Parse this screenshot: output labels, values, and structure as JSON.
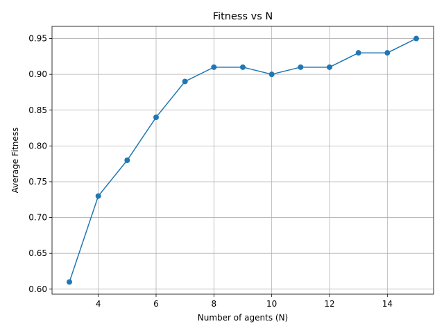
{
  "chart_data": {
    "type": "line",
    "title": "Fitness vs N",
    "xlabel": "Number of agents (N)",
    "ylabel": "Average Fitness",
    "xlim": [
      2.4,
      15.6
    ],
    "ylim": [
      0.593,
      0.967
    ],
    "xticks": [
      4,
      6,
      8,
      10,
      12,
      14
    ],
    "yticks": [
      0.6,
      0.65,
      0.7,
      0.75,
      0.8,
      0.85,
      0.9,
      0.95
    ],
    "grid": true,
    "series": [
      {
        "color": "#1f77b4",
        "marker": "circle",
        "x": [
          3,
          4,
          5,
          6,
          7,
          8,
          9,
          10,
          11,
          12,
          13,
          14,
          15
        ],
        "y": [
          0.61,
          0.73,
          0.78,
          0.84,
          0.89,
          0.91,
          0.91,
          0.9,
          0.91,
          0.91,
          0.93,
          0.93,
          0.95
        ]
      }
    ]
  }
}
